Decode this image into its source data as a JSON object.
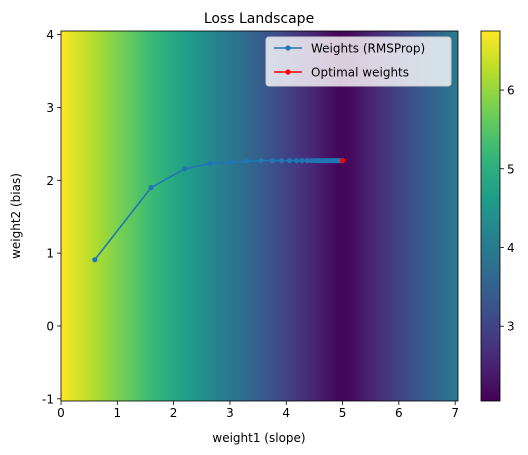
{
  "chart_data": {
    "type": "heatmap",
    "title": "Loss Landscape",
    "xlabel": "weight1 (slope)",
    "ylabel": "weight2 (bias)",
    "xlim": [
      0,
      7.05
    ],
    "ylim": [
      -1.03,
      4.05
    ],
    "x_ticks": [
      0,
      1,
      2,
      3,
      4,
      5,
      6,
      7
    ],
    "y_ticks": [
      -1,
      0,
      1,
      2,
      3,
      4
    ],
    "colormap": "viridis",
    "colorbar": {
      "range": [
        2.05,
        6.75
      ],
      "ticks": [
        3,
        4,
        5,
        6
      ]
    },
    "surface": {
      "optimum_x": 5.0,
      "min_value": 2.05,
      "max_value": 6.75,
      "falloff_per_unit": 0.94
    },
    "grid": false,
    "legend_position": "top-right",
    "series": [
      {
        "name": "Weights (RMSProp)",
        "type": "line",
        "color": "#1f77b4",
        "marker": "circle",
        "x": [
          0.6,
          1.6,
          2.2,
          2.65,
          3.0,
          3.3,
          3.55,
          3.75,
          3.92,
          4.06,
          4.18,
          4.28,
          4.37,
          4.45,
          4.52,
          4.58,
          4.63,
          4.68,
          4.72,
          4.76,
          4.8,
          4.84,
          4.88,
          4.92,
          4.96,
          5.0
        ],
        "y": [
          0.91,
          1.9,
          2.16,
          2.23,
          2.25,
          2.26,
          2.27,
          2.27,
          2.27,
          2.27,
          2.27,
          2.27,
          2.27,
          2.27,
          2.27,
          2.27,
          2.27,
          2.27,
          2.27,
          2.27,
          2.27,
          2.27,
          2.27,
          2.27,
          2.27,
          2.27
        ]
      },
      {
        "name": "Optimal weights",
        "type": "scatter",
        "color": "#ff0000",
        "marker": "circle",
        "x": [
          5.0
        ],
        "y": [
          2.27
        ]
      }
    ]
  }
}
